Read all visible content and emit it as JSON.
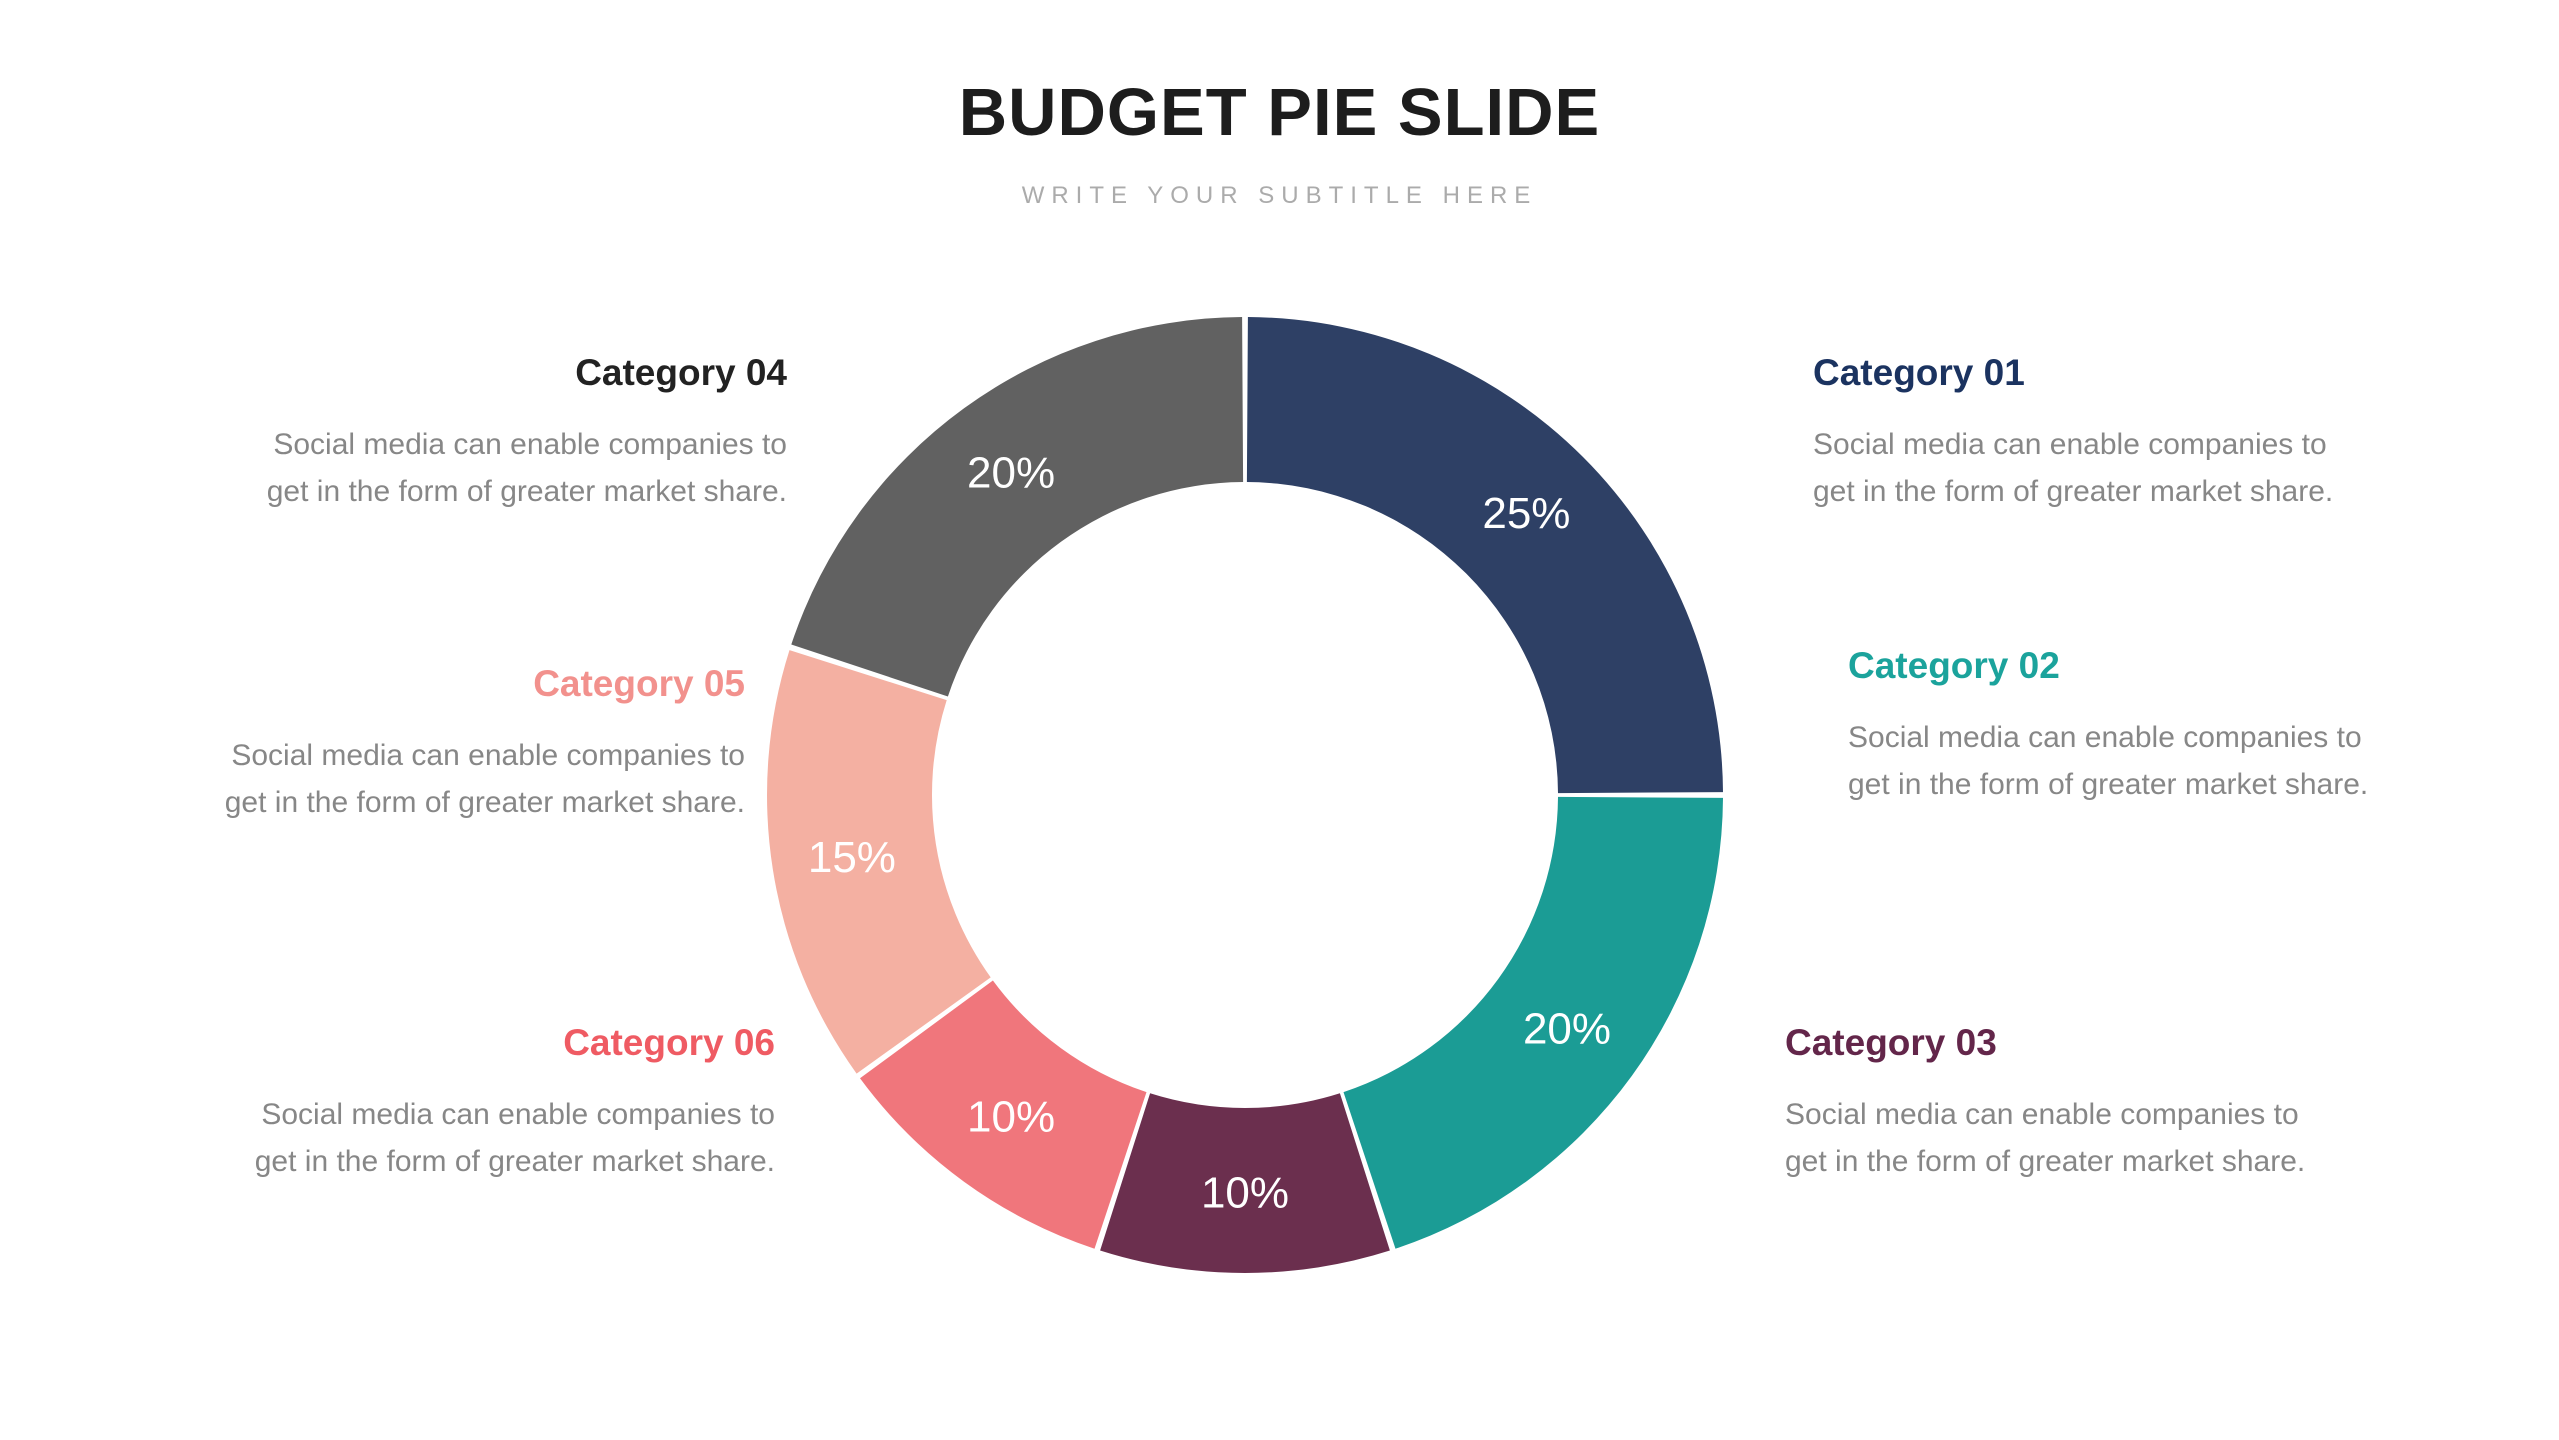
{
  "header": {
    "title": "BUDGET PIE SLIDE",
    "subtitle": "WRITE YOUR SUBTITLE HERE"
  },
  "categories": [
    {
      "label": "Category 01",
      "title_color": "#1b3360",
      "description_lines": [
        "Social media can enable companies to",
        "get in the form of greater market share."
      ]
    },
    {
      "label": "Category 02",
      "title_color": "#1ba39c",
      "description_lines": [
        "Social media can enable companies to",
        "get in the form of greater market share."
      ]
    },
    {
      "label": "Category 03",
      "title_color": "#63264a",
      "description_lines": [
        "Social media can enable companies to",
        "get in the form of greater market share."
      ]
    },
    {
      "label": "Category 04",
      "title_color": "#222222",
      "description_lines": [
        "Social media can enable companies to",
        "get in the form of greater market share."
      ]
    },
    {
      "label": "Category 05",
      "title_color": "#f2918d",
      "description_lines": [
        "Social media can enable companies to",
        "get in the form of greater market share."
      ]
    },
    {
      "label": "Category 06",
      "title_color": "#ef5b63",
      "description_lines": [
        "Social media can enable companies to",
        "get in the form of greater market share."
      ]
    }
  ],
  "chart_data": {
    "type": "pie",
    "subtype": "donut",
    "title": "BUDGET PIE SLIDE",
    "categories": [
      "Category 01",
      "Category 02",
      "Category 03",
      "Category 06",
      "Category 05",
      "Category 04"
    ],
    "values": [
      25,
      20,
      10,
      10,
      15,
      20
    ],
    "segments": [
      {
        "name": "category-01",
        "label": "Category 01",
        "value": 25,
        "pct_label": "25%",
        "color": "#2e4065"
      },
      {
        "name": "category-02",
        "label": "Category 02",
        "value": 20,
        "pct_label": "20%",
        "color": "#1b9c95"
      },
      {
        "name": "category-03",
        "label": "Category 03",
        "value": 10,
        "pct_label": "10%",
        "color": "#6b2f4e"
      },
      {
        "name": "category-06",
        "label": "Category 06",
        "value": 10,
        "pct_label": "10%",
        "color": "#f0767c"
      },
      {
        "name": "category-05",
        "label": "Category 05",
        "value": 15,
        "pct_label": "15%",
        "color": "#f4b0a2"
      },
      {
        "name": "category-04",
        "label": "Category 04",
        "value": 20,
        "pct_label": "20%",
        "color": "#616161"
      }
    ],
    "label_color": "#ffffff",
    "start_angle_deg": 0,
    "direction": "clockwise",
    "center": [
      1245,
      795
    ],
    "outer_radius": 478,
    "inner_radius": 313,
    "label_radius": 398,
    "gap_deg": 0.35,
    "legend_position": "none"
  }
}
